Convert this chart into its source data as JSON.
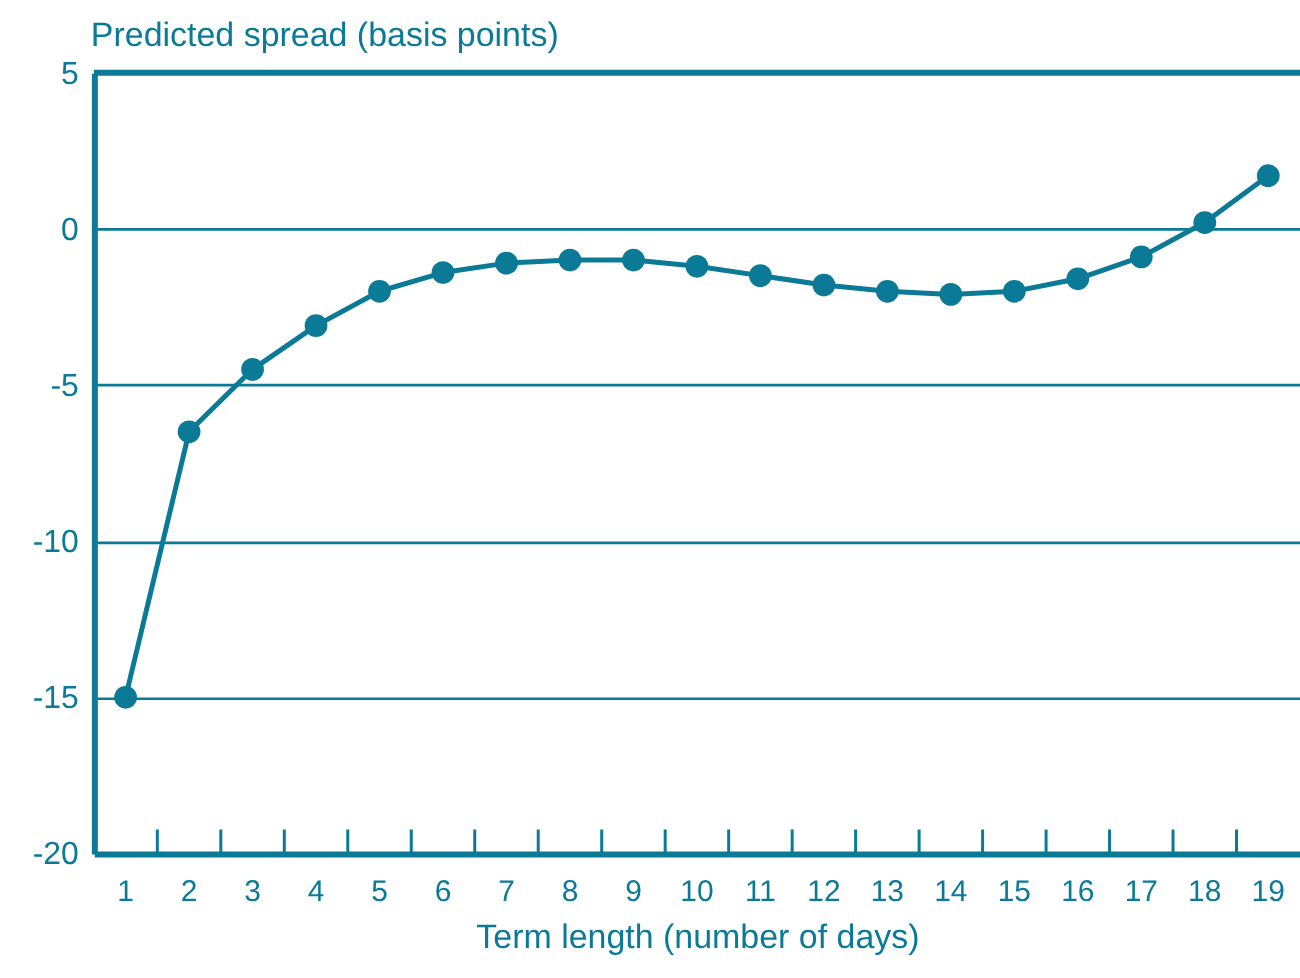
{
  "chart_data": {
    "type": "line",
    "xlabel": "Term length (number of days)",
    "ylabel": "Predicted spread (basis points)",
    "x": [
      1,
      2,
      3,
      4,
      5,
      6,
      7,
      8,
      9,
      10,
      11,
      12,
      13,
      14,
      15,
      16,
      17,
      18,
      19
    ],
    "series": [
      {
        "color": "#0b7a96",
        "values": [
          -15,
          -6.5,
          -4.5,
          -3.1,
          -2.0,
          -1.4,
          -1.1,
          -1.0,
          -1.0,
          -1.2,
          -1.5,
          -1.8,
          -2.0,
          -2.1,
          -2.0,
          -1.6,
          -0.9,
          0.2,
          1.7
        ]
      }
    ],
    "xlim": [
      0.5,
      19.5
    ],
    "xticks": [
      1,
      2,
      3,
      4,
      5,
      6,
      7,
      8,
      9,
      10,
      11,
      12,
      13,
      14,
      15,
      16,
      17,
      18,
      19,
      {
        "value": 1.5,
        "label": null
      },
      {
        "value": 2.5,
        "label": null
      },
      {
        "value": 3.5,
        "label": null
      },
      {
        "value": 4.5,
        "label": null
      },
      {
        "value": 5.5,
        "label": null
      },
      {
        "value": 6.5,
        "label": null
      },
      {
        "value": 7.5,
        "label": null
      },
      {
        "value": 8.5,
        "label": null
      },
      {
        "value": 9.5,
        "label": null
      },
      {
        "value": 10.5,
        "label": null
      },
      {
        "value": 11.5,
        "label": null
      },
      {
        "value": 12.5,
        "label": null
      },
      {
        "value": 13.5,
        "label": null
      },
      {
        "value": 14.5,
        "label": null
      },
      {
        "value": 15.5,
        "label": null
      },
      {
        "value": 16.5,
        "label": null
      },
      {
        "value": 17.5,
        "label": null
      },
      {
        "value": 18.5,
        "label": null
      }
    ],
    "ylim": [
      -20,
      5
    ],
    "yticks": [
      -20,
      -15,
      -10,
      -5,
      0,
      5
    ],
    "grid": "y",
    "marker": "circle",
    "line_style": "solid"
  }
}
